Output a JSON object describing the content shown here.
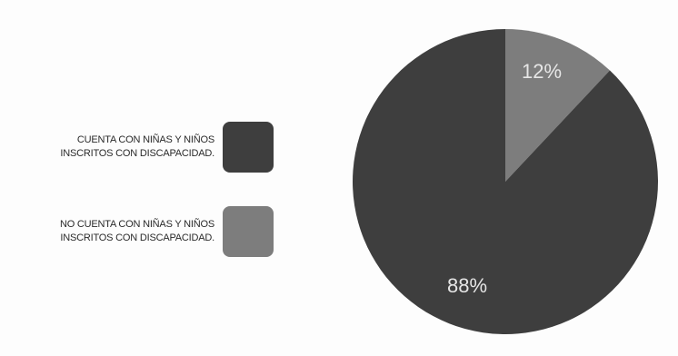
{
  "chart_data": {
    "type": "pie",
    "categories": [
      "CUENTA CON NIÑAS Y NIÑOS\nINSCRITOS CON DISCAPACIDAD.",
      "NO CUENTA CON NIÑAS Y NIÑOS\nINSCRITOS CON DISCAPACIDAD."
    ],
    "values": [
      88,
      12
    ],
    "data_labels": [
      "88%",
      "12%"
    ],
    "colors": [
      "#3e3e3e",
      "#7d7d7d"
    ],
    "legend_position": "left",
    "title": ""
  }
}
